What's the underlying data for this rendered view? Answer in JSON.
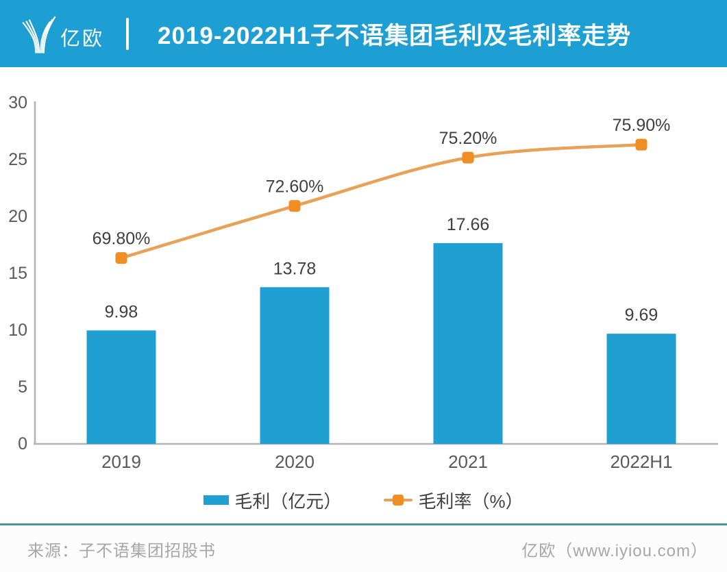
{
  "header": {
    "logo_text": "亿欧",
    "title": "2019-2022H1子不语集团毛利及毛利率走势"
  },
  "chart_data": {
    "type": "bar+line",
    "categories": [
      "2019",
      "2020",
      "2021",
      "2022H1"
    ],
    "series": [
      {
        "name": "毛利（亿元）",
        "type": "bar",
        "values": [
          9.98,
          13.78,
          17.66,
          9.69
        ],
        "data_labels": [
          "9.98",
          "13.78",
          "17.66",
          "9.69"
        ],
        "color": "#1f9fd2"
      },
      {
        "name": "毛利率（%）",
        "type": "line",
        "values": [
          69.8,
          72.6,
          75.2,
          75.9
        ],
        "data_labels": [
          "69.80%",
          "72.60%",
          "75.20%",
          "75.90%"
        ],
        "line_color": "#e8a157",
        "marker_color": "#ee8e23"
      }
    ],
    "y_axis": {
      "min": 0,
      "max": 30,
      "step": 5,
      "tick_labels": [
        "0",
        "5",
        "10",
        "15",
        "20",
        "25",
        "30"
      ]
    },
    "title": "2019-2022H1子不语集团毛利及毛利率走势",
    "xlabel": "",
    "ylabel": "",
    "ylim": [
      0,
      30
    ],
    "grid": false,
    "legend_position": "bottom"
  },
  "footer": {
    "source": "来源：子不语集团招股书",
    "site_credit": "亿欧（www.iyiou.com）"
  },
  "colors": {
    "header_bg": "#1e9fd3",
    "bar": "#1f9fd2",
    "line": "#e8a157",
    "marker": "#ee8e23",
    "teal_rule": "#43989a",
    "axis": "#b3b3b3",
    "text_dark": "#3f3f3f",
    "text_axis": "#595959",
    "text_muted": "#a7a7a7"
  }
}
